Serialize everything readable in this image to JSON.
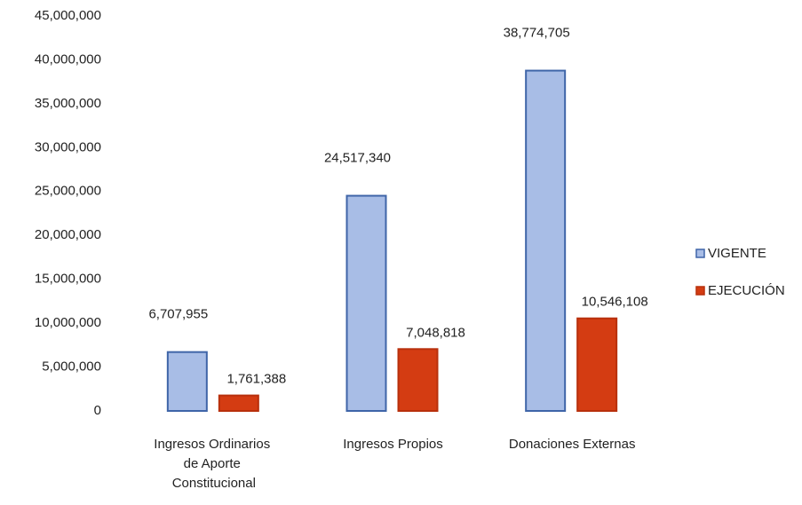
{
  "chart_data": {
    "type": "bar",
    "categories": [
      "Ingresos Ordinarios de Aporte Constitucional",
      "Ingresos Propios",
      "Donaciones Externas"
    ],
    "series": [
      {
        "name": "VIGENTE",
        "color": "#a8bde6",
        "values": [
          6707955,
          24517340,
          38774705
        ],
        "value_labels": [
          "6,707,955",
          "24,517,340",
          "38,774,705"
        ]
      },
      {
        "name": "EJECUCIÓN",
        "color": "#d43c12",
        "values": [
          1761388,
          7048818,
          10546108
        ],
        "value_labels": [
          "1,761,388",
          "7,048,818",
          "10,546,108"
        ]
      }
    ],
    "ylim": [
      0,
      45000000
    ],
    "yticks": [
      {
        "value": 0,
        "label": "0"
      },
      {
        "value": 5000000,
        "label": "5,000,000"
      },
      {
        "value": 10000000,
        "label": "10,000,000"
      },
      {
        "value": 15000000,
        "label": "15,000,000"
      },
      {
        "value": 20000000,
        "label": "20,000,000"
      },
      {
        "value": 25000000,
        "label": "25,000,000"
      },
      {
        "value": 30000000,
        "label": "30,000,000"
      },
      {
        "value": 35000000,
        "label": "35,000,000"
      },
      {
        "value": 40000000,
        "label": "40,000,000"
      },
      {
        "value": 45000000,
        "label": "45,000,000"
      }
    ],
    "grid": false,
    "legend": "right"
  }
}
